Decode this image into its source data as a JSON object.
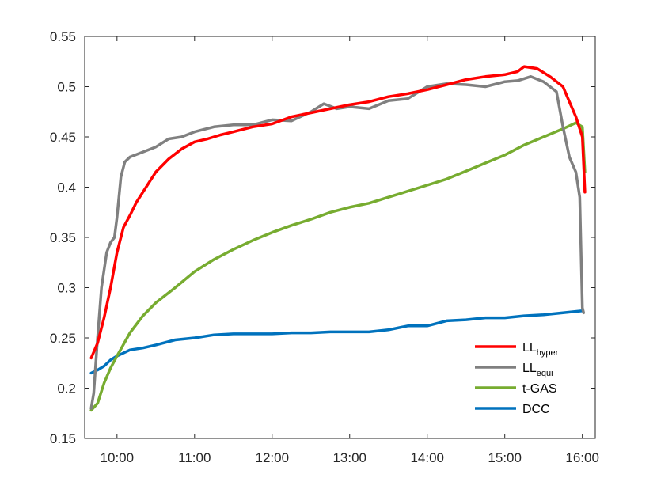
{
  "chart_data": {
    "type": "line",
    "title": "",
    "xlabel": "",
    "ylabel": "",
    "x_ticks": [
      "10:00",
      "11:00",
      "12:00",
      "13:00",
      "14:00",
      "15:00",
      "16:00"
    ],
    "y_ticks": [
      "0.15",
      "0.2",
      "0.25",
      "0.3",
      "0.35",
      "0.4",
      "0.45",
      "0.5",
      "0.55"
    ],
    "xlim": [
      "09:35",
      "16:10"
    ],
    "ylim": [
      0.15,
      0.55
    ],
    "grid": false,
    "legend_position": "bottom-right",
    "series": [
      {
        "name": "LL",
        "subscript": "hyper",
        "color": "#ff0000",
        "points": [
          [
            "09:40",
            0.23
          ],
          [
            "09:45",
            0.245
          ],
          [
            "09:50",
            0.27
          ],
          [
            "09:55",
            0.3
          ],
          [
            "10:00",
            0.335
          ],
          [
            "10:05",
            0.36
          ],
          [
            "10:10",
            0.372
          ],
          [
            "10:15",
            0.385
          ],
          [
            "10:20",
            0.395
          ],
          [
            "10:25",
            0.405
          ],
          [
            "10:30",
            0.415
          ],
          [
            "10:40",
            0.428
          ],
          [
            "10:50",
            0.438
          ],
          [
            "11:00",
            0.445
          ],
          [
            "11:10",
            0.448
          ],
          [
            "11:20",
            0.452
          ],
          [
            "11:30",
            0.455
          ],
          [
            "11:45",
            0.46
          ],
          [
            "12:00",
            0.463
          ],
          [
            "12:15",
            0.47
          ],
          [
            "12:30",
            0.474
          ],
          [
            "12:45",
            0.478
          ],
          [
            "13:00",
            0.482
          ],
          [
            "13:15",
            0.485
          ],
          [
            "13:30",
            0.49
          ],
          [
            "13:45",
            0.493
          ],
          [
            "14:00",
            0.497
          ],
          [
            "14:15",
            0.502
          ],
          [
            "14:30",
            0.507
          ],
          [
            "14:45",
            0.51
          ],
          [
            "15:00",
            0.512
          ],
          [
            "15:10",
            0.515
          ],
          [
            "15:15",
            0.52
          ],
          [
            "15:25",
            0.518
          ],
          [
            "15:35",
            0.51
          ],
          [
            "15:45",
            0.5
          ],
          [
            "15:50",
            0.485
          ],
          [
            "15:55",
            0.47
          ],
          [
            "16:00",
            0.45
          ],
          [
            "16:02",
            0.395
          ]
        ]
      },
      {
        "name": "LL",
        "subscript": "equi",
        "color": "#808080",
        "points": [
          [
            "09:40",
            0.18
          ],
          [
            "09:42",
            0.195
          ],
          [
            "09:45",
            0.25
          ],
          [
            "09:48",
            0.3
          ],
          [
            "09:52",
            0.335
          ],
          [
            "09:55",
            0.345
          ],
          [
            "09:58",
            0.35
          ],
          [
            "10:00",
            0.37
          ],
          [
            "10:03",
            0.41
          ],
          [
            "10:06",
            0.425
          ],
          [
            "10:10",
            0.43
          ],
          [
            "10:20",
            0.435
          ],
          [
            "10:30",
            0.44
          ],
          [
            "10:40",
            0.448
          ],
          [
            "10:50",
            0.45
          ],
          [
            "11:00",
            0.455
          ],
          [
            "11:15",
            0.46
          ],
          [
            "11:30",
            0.462
          ],
          [
            "11:45",
            0.462
          ],
          [
            "12:00",
            0.467
          ],
          [
            "12:15",
            0.466
          ],
          [
            "12:30",
            0.475
          ],
          [
            "12:40",
            0.483
          ],
          [
            "12:50",
            0.478
          ],
          [
            "13:00",
            0.48
          ],
          [
            "13:15",
            0.478
          ],
          [
            "13:30",
            0.486
          ],
          [
            "13:45",
            0.488
          ],
          [
            "14:00",
            0.5
          ],
          [
            "14:15",
            0.503
          ],
          [
            "14:30",
            0.502
          ],
          [
            "14:45",
            0.5
          ],
          [
            "15:00",
            0.505
          ],
          [
            "15:10",
            0.506
          ],
          [
            "15:20",
            0.51
          ],
          [
            "15:30",
            0.505
          ],
          [
            "15:40",
            0.495
          ],
          [
            "15:45",
            0.46
          ],
          [
            "15:50",
            0.43
          ],
          [
            "15:55",
            0.415
          ],
          [
            "15:58",
            0.39
          ],
          [
            "16:00",
            0.28
          ],
          [
            "16:01",
            0.275
          ]
        ]
      },
      {
        "name": "t-GAS",
        "subscript": "",
        "color": "#77ac30",
        "points": [
          [
            "09:40",
            0.178
          ],
          [
            "09:45",
            0.185
          ],
          [
            "09:50",
            0.205
          ],
          [
            "09:55",
            0.22
          ],
          [
            "10:00",
            0.232
          ],
          [
            "10:10",
            0.255
          ],
          [
            "10:20",
            0.272
          ],
          [
            "10:30",
            0.285
          ],
          [
            "10:45",
            0.3
          ],
          [
            "11:00",
            0.316
          ],
          [
            "11:15",
            0.328
          ],
          [
            "11:30",
            0.338
          ],
          [
            "11:45",
            0.347
          ],
          [
            "12:00",
            0.355
          ],
          [
            "12:15",
            0.362
          ],
          [
            "12:30",
            0.368
          ],
          [
            "12:45",
            0.375
          ],
          [
            "13:00",
            0.38
          ],
          [
            "13:15",
            0.384
          ],
          [
            "13:30",
            0.39
          ],
          [
            "13:45",
            0.396
          ],
          [
            "14:00",
            0.402
          ],
          [
            "14:15",
            0.408
          ],
          [
            "14:30",
            0.416
          ],
          [
            "14:45",
            0.424
          ],
          [
            "15:00",
            0.432
          ],
          [
            "15:15",
            0.442
          ],
          [
            "15:30",
            0.45
          ],
          [
            "15:45",
            0.458
          ],
          [
            "15:55",
            0.464
          ],
          [
            "16:00",
            0.46
          ],
          [
            "16:02",
            0.415
          ]
        ]
      },
      {
        "name": "DCC",
        "subscript": "",
        "color": "#0072bd",
        "points": [
          [
            "09:40",
            0.215
          ],
          [
            "09:45",
            0.218
          ],
          [
            "09:50",
            0.222
          ],
          [
            "09:55",
            0.228
          ],
          [
            "10:00",
            0.232
          ],
          [
            "10:10",
            0.238
          ],
          [
            "10:20",
            0.24
          ],
          [
            "10:30",
            0.243
          ],
          [
            "10:45",
            0.248
          ],
          [
            "11:00",
            0.25
          ],
          [
            "11:15",
            0.253
          ],
          [
            "11:30",
            0.254
          ],
          [
            "11:45",
            0.254
          ],
          [
            "12:00",
            0.254
          ],
          [
            "12:15",
            0.255
          ],
          [
            "12:30",
            0.255
          ],
          [
            "12:45",
            0.256
          ],
          [
            "13:00",
            0.256
          ],
          [
            "13:15",
            0.256
          ],
          [
            "13:30",
            0.258
          ],
          [
            "13:45",
            0.262
          ],
          [
            "14:00",
            0.262
          ],
          [
            "14:15",
            0.267
          ],
          [
            "14:30",
            0.268
          ],
          [
            "14:45",
            0.27
          ],
          [
            "15:00",
            0.27
          ],
          [
            "15:15",
            0.272
          ],
          [
            "15:30",
            0.273
          ],
          [
            "15:45",
            0.275
          ],
          [
            "16:00",
            0.277
          ]
        ]
      }
    ]
  }
}
